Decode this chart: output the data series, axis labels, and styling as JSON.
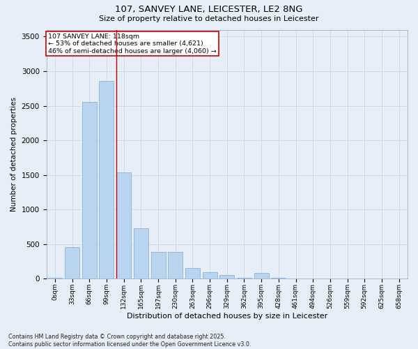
{
  "title1": "107, SANVEY LANE, LEICESTER, LE2 8NG",
  "title2": "Size of property relative to detached houses in Leicester",
  "xlabel": "Distribution of detached houses by size in Leicester",
  "ylabel": "Number of detached properties",
  "categories": [
    "0sqm",
    "33sqm",
    "66sqm",
    "99sqm",
    "132sqm",
    "165sqm",
    "197sqm",
    "230sqm",
    "263sqm",
    "296sqm",
    "329sqm",
    "362sqm",
    "395sqm",
    "428sqm",
    "461sqm",
    "494sqm",
    "526sqm",
    "559sqm",
    "592sqm",
    "625sqm",
    "658sqm"
  ],
  "values": [
    10,
    460,
    2560,
    2860,
    1540,
    730,
    390,
    390,
    155,
    90,
    50,
    10,
    80,
    15,
    5,
    5,
    5,
    5,
    5,
    5,
    5
  ],
  "bar_color": "#b8d4ee",
  "bar_edge_color": "#8ab4d8",
  "grid_color": "#c8d8ec",
  "bg_color": "#e8eef8",
  "vline_x": 3.58,
  "vline_color": "#cc0000",
  "annotation_line1": "107 SANVEY LANE: 118sqm",
  "annotation_line2": "← 53% of detached houses are smaller (4,621)",
  "annotation_line3": "46% of semi-detached houses are larger (4,060) →",
  "ann_box_color": "white",
  "ann_border_color": "#cc0000",
  "footer1": "Contains HM Land Registry data © Crown copyright and database right 2025.",
  "footer2": "Contains public sector information licensed under the Open Government Licence v3.0.",
  "ylim": [
    0,
    3600
  ],
  "yticks": [
    0,
    500,
    1000,
    1500,
    2000,
    2500,
    3000,
    3500
  ]
}
